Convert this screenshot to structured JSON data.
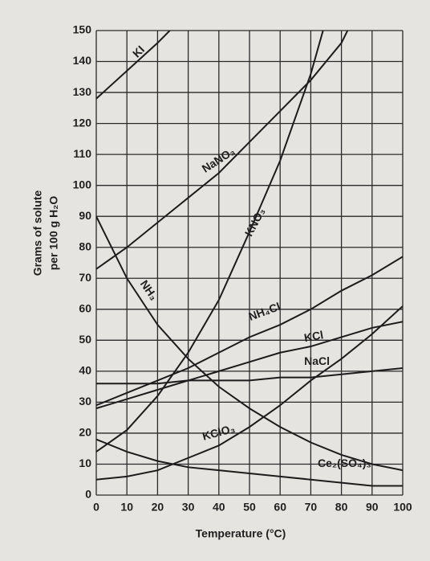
{
  "chart_data": {
    "type": "line",
    "xlabel": "Temperature (°C)",
    "ylabel": [
      "Grams of solute",
      "per 100 g H₂O"
    ],
    "xlim": [
      0,
      100
    ],
    "xticks": [
      0,
      10,
      20,
      30,
      40,
      50,
      60,
      70,
      80,
      90,
      100
    ],
    "ylim": [
      0,
      150
    ],
    "yticks": [
      0,
      10,
      20,
      30,
      40,
      50,
      60,
      70,
      80,
      90,
      100,
      110,
      120,
      130,
      140,
      150
    ],
    "grid": true,
    "series": [
      {
        "name": "KI",
        "color": "#1c1c1c",
        "x": [
          0,
          10,
          20,
          24
        ],
        "values": [
          128,
          137,
          146,
          150
        ]
      },
      {
        "name": "NaNO₃",
        "color": "#1c1c1c",
        "x": [
          0,
          10,
          20,
          30,
          40,
          50,
          60,
          70,
          80,
          82
        ],
        "values": [
          73,
          80,
          88,
          96,
          104,
          114,
          124,
          134,
          146,
          150
        ]
      },
      {
        "name": "KNO₃",
        "color": "#1c1c1c",
        "x": [
          0,
          10,
          20,
          30,
          40,
          50,
          60,
          70,
          74
        ],
        "values": [
          14,
          21,
          32,
          46,
          63,
          85,
          108,
          136,
          150
        ]
      },
      {
        "name": "NH₃",
        "color": "#1c1c1c",
        "x": [
          0,
          10,
          20,
          30,
          40,
          50,
          60,
          70,
          80,
          90,
          100
        ],
        "values": [
          90,
          70,
          55,
          44,
          35,
          28,
          22,
          17,
          13,
          10,
          8
        ]
      },
      {
        "name": "NH₄Cl",
        "color": "#1c1c1c",
        "x": [
          0,
          10,
          20,
          30,
          40,
          50,
          60,
          70,
          80,
          90,
          100
        ],
        "values": [
          29,
          33,
          37,
          41,
          46,
          51,
          55,
          60,
          66,
          71,
          77
        ]
      },
      {
        "name": "KCl",
        "color": "#1c1c1c",
        "x": [
          0,
          10,
          20,
          30,
          40,
          50,
          60,
          70,
          80,
          90,
          100
        ],
        "values": [
          28,
          31,
          34,
          37,
          40,
          43,
          46,
          48,
          51,
          54,
          56
        ]
      },
      {
        "name": "NaCl",
        "color": "#1c1c1c",
        "x": [
          0,
          10,
          20,
          30,
          40,
          50,
          60,
          70,
          80,
          90,
          100
        ],
        "values": [
          36,
          36,
          36,
          37,
          37,
          37,
          38,
          38,
          39,
          40,
          41
        ]
      },
      {
        "name": "KClO₃",
        "color": "#1c1c1c",
        "x": [
          0,
          10,
          20,
          30,
          40,
          50,
          60,
          70,
          80,
          90,
          100
        ],
        "values": [
          5,
          6,
          8,
          12,
          16,
          22,
          29,
          37,
          44,
          52,
          61
        ]
      },
      {
        "name": "Ce₂(SO₄)₃",
        "color": "#1c1c1c",
        "x": [
          0,
          10,
          20,
          30,
          40,
          50,
          60,
          70,
          80,
          90,
          100
        ],
        "values": [
          18,
          14,
          11,
          9,
          8,
          7,
          6,
          5,
          4,
          3,
          3
        ]
      }
    ]
  }
}
